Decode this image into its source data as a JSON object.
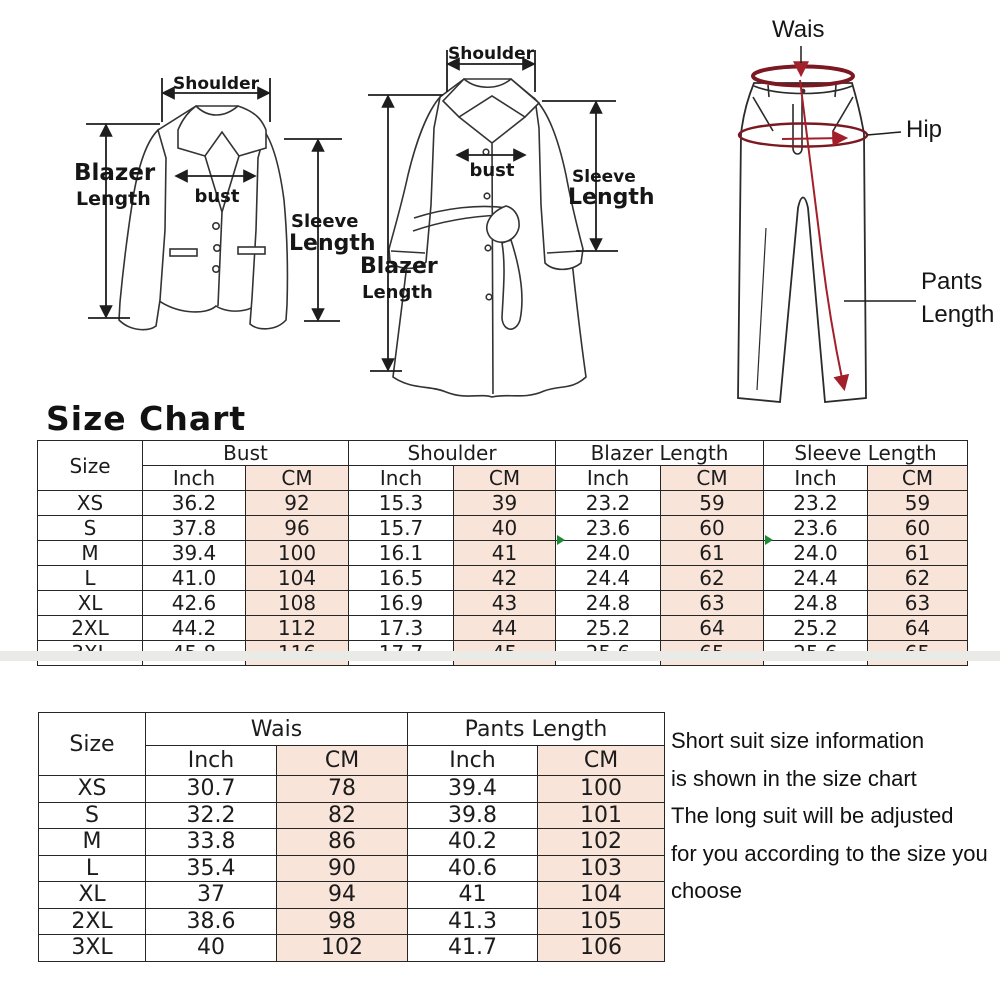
{
  "colors": {
    "cm_column_bg": "#f9e4d9",
    "table_border": "#262626",
    "measure_line_dark_red": "#7c1822",
    "measure_line_red": "#a3202a",
    "comment_flag_green": "#1e8a34"
  },
  "diagrams": {
    "blazer": {
      "shoulder": "Shoulder",
      "length_line1": "Blazer",
      "length_line2": "Length",
      "bust": "bust",
      "sleeve_line1": "Sleeve",
      "sleeve_line2": "Length"
    },
    "coat": {
      "shoulder": "Shoulder",
      "length_line1": "Blazer",
      "length_line2": "Length",
      "bust": "bust",
      "sleeve_line1": "Sleeve",
      "sleeve_line2": "Length"
    },
    "pants": {
      "waist": "Wais",
      "hip": "Hip",
      "length_line1": "Pants",
      "length_line2": "Length"
    }
  },
  "title": "Size Chart",
  "suit_table": {
    "size_header": "Size",
    "groups": [
      "Bust",
      "Shoulder",
      "Blazer Length",
      "Sleeve Length"
    ],
    "units": [
      "Inch",
      "CM"
    ],
    "rows": [
      {
        "size": "XS",
        "values": [
          "36.2",
          "92",
          "15.3",
          "39",
          "23.2",
          "59",
          "23.2",
          "59"
        ]
      },
      {
        "size": "S",
        "values": [
          "37.8",
          "96",
          "15.7",
          "40",
          "23.6",
          "60",
          "23.6",
          "60"
        ]
      },
      {
        "size": "M",
        "values": [
          "39.4",
          "100",
          "16.1",
          "41",
          "24.0",
          "61",
          "24.0",
          "61"
        ]
      },
      {
        "size": "L",
        "values": [
          "41.0",
          "104",
          "16.5",
          "42",
          "24.4",
          "62",
          "24.4",
          "62"
        ]
      },
      {
        "size": "XL",
        "values": [
          "42.6",
          "108",
          "16.9",
          "43",
          "24.8",
          "63",
          "24.8",
          "63"
        ]
      },
      {
        "size": "2XL",
        "values": [
          "44.2",
          "112",
          "17.3",
          "44",
          "25.2",
          "64",
          "25.2",
          "64"
        ]
      },
      {
        "size": "3XL",
        "values": [
          "45.8",
          "116",
          "17.7",
          "45",
          "25.6",
          "65",
          "25.6",
          "65"
        ]
      }
    ]
  },
  "pants_table": {
    "size_header": "Size",
    "groups": [
      "Wais",
      "Pants Length"
    ],
    "units": [
      "Inch",
      "CM"
    ],
    "rows": [
      {
        "size": "XS",
        "values": [
          "30.7",
          "78",
          "39.4",
          "100"
        ]
      },
      {
        "size": "S",
        "values": [
          "32.2",
          "82",
          "39.8",
          "101"
        ]
      },
      {
        "size": "M",
        "values": [
          "33.8",
          "86",
          "40.2",
          "102"
        ]
      },
      {
        "size": "L",
        "values": [
          "35.4",
          "90",
          "40.6",
          "103"
        ]
      },
      {
        "size": "XL",
        "values": [
          "37",
          "94",
          "41",
          "104"
        ]
      },
      {
        "size": "2XL",
        "values": [
          "38.6",
          "98",
          "41.3",
          "105"
        ]
      },
      {
        "size": "3XL",
        "values": [
          "40",
          "102",
          "41.7",
          "106"
        ]
      }
    ]
  },
  "note": {
    "lines": [
      "Short suit size information",
      "is shown in the size chart",
      "The long suit will be adjusted",
      "for you according to the size you",
      "choose"
    ]
  }
}
